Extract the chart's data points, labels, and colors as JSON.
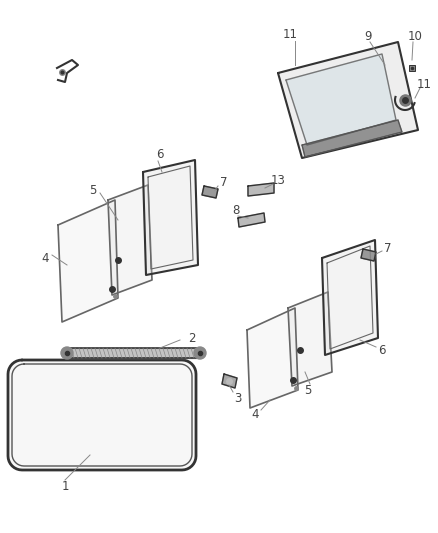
{
  "bg_color": "#ffffff",
  "line_color": "#666666",
  "dark_color": "#333333",
  "label_color": "#444444",
  "fig_width": 4.38,
  "fig_height": 5.33,
  "dpi": 100
}
